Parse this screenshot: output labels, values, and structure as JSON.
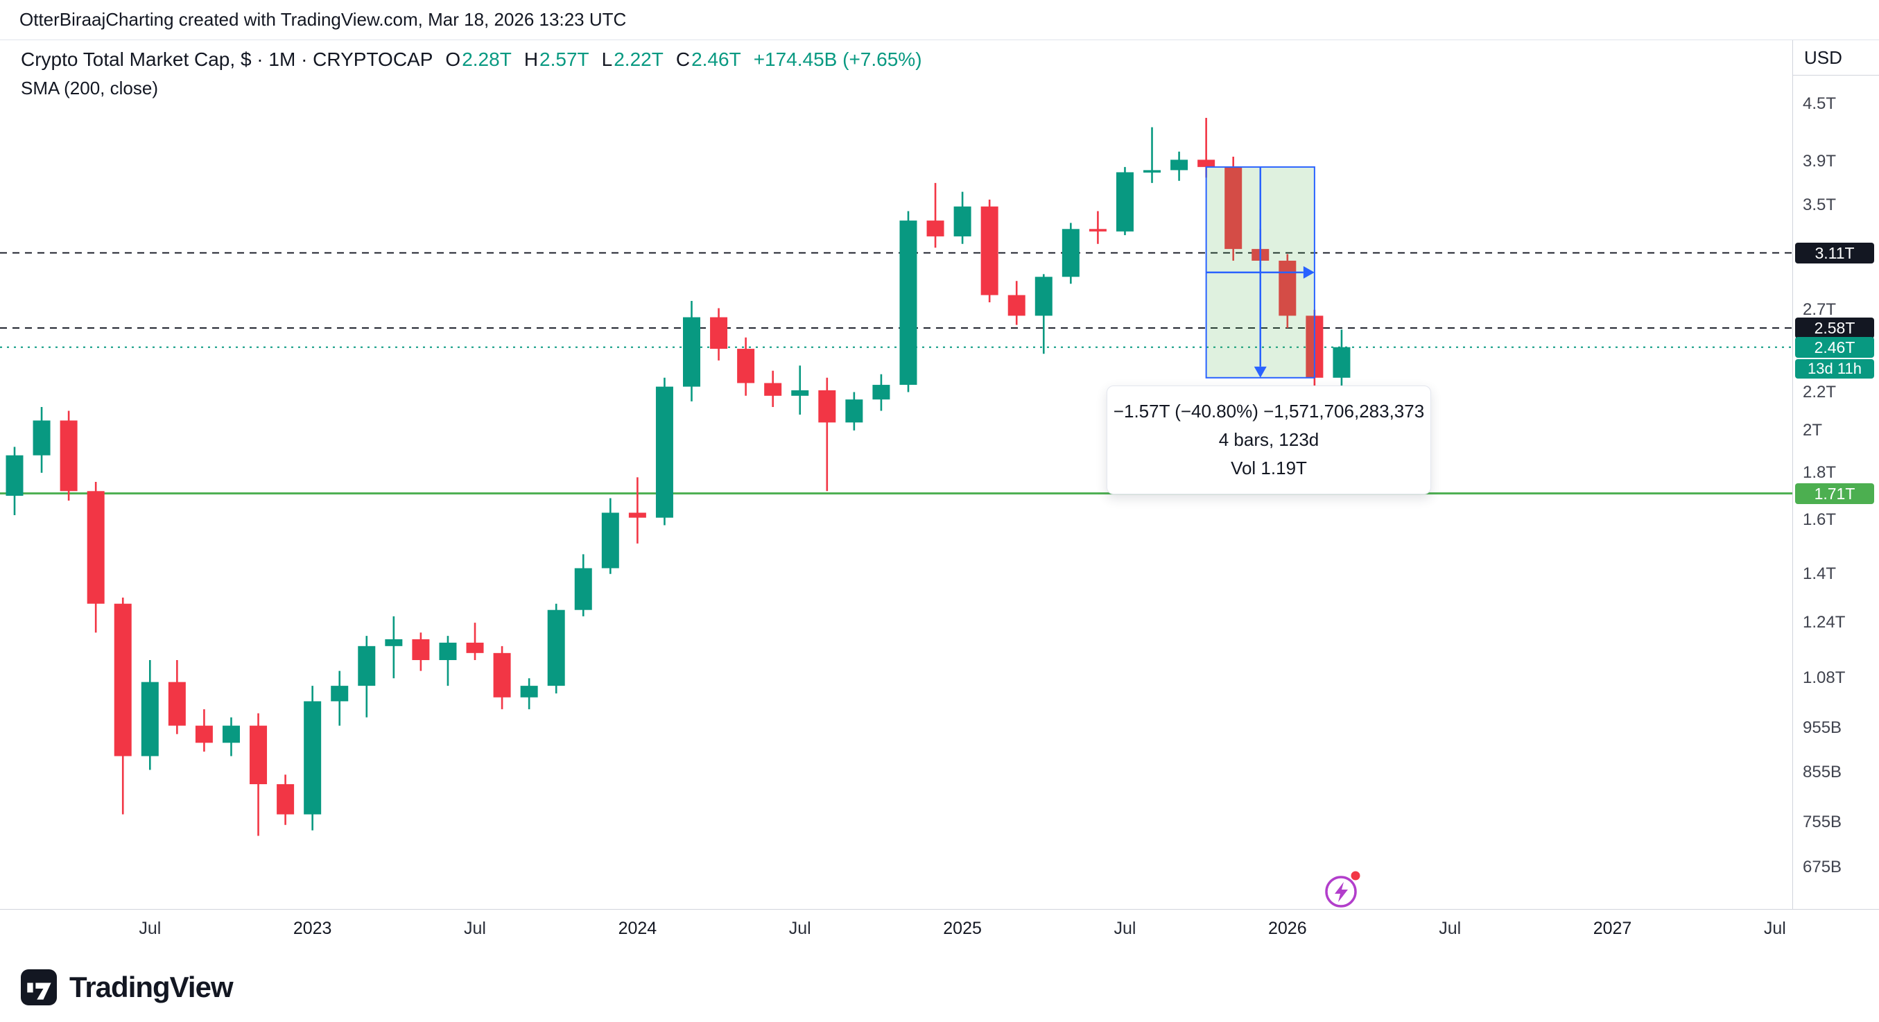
{
  "header": {
    "credit": "OtterBiraajCharting created with TradingView.com, Mar 18, 2026 13:23 UTC"
  },
  "legend": {
    "title": "Crypto Total Market Cap, $ · 1M · CRYPTOCAP",
    "ohlc": {
      "o_label": "O",
      "o": "2.28T",
      "h_label": "H",
      "h": "2.57T",
      "l_label": "L",
      "l": "2.22T",
      "c_label": "C",
      "c": "2.46T",
      "change": "+174.45B (+7.65%)"
    },
    "indicator": "SMA (200, close)"
  },
  "axis": {
    "currency": "USD",
    "price_ticks": [
      {
        "label": "4.5T",
        "value": 4.5
      },
      {
        "label": "3.9T",
        "value": 3.9
      },
      {
        "label": "3.5T",
        "value": 3.5
      },
      {
        "label": "2.7T",
        "value": 2.7
      },
      {
        "label": "2.2T",
        "value": 2.2
      },
      {
        "label": "2T",
        "value": 2.0
      },
      {
        "label": "1.8T",
        "value": 1.8
      },
      {
        "label": "1.6T",
        "value": 1.6
      },
      {
        "label": "1.4T",
        "value": 1.4
      },
      {
        "label": "1.24T",
        "value": 1.24
      },
      {
        "label": "1.08T",
        "value": 1.08
      },
      {
        "label": "955B",
        "value": 0.955
      },
      {
        "label": "855B",
        "value": 0.855
      },
      {
        "label": "755B",
        "value": 0.755
      },
      {
        "label": "675B",
        "value": 0.675
      }
    ],
    "badges": [
      {
        "label": "3.11T",
        "value": 3.11,
        "type": "level-dark"
      },
      {
        "label": "2.58T",
        "value": 2.58,
        "type": "level-dark"
      },
      {
        "label": "2.46T",
        "value": 2.46,
        "type": "price-up",
        "countdown": "13d 11h"
      },
      {
        "label": "1.71T",
        "value": 1.71,
        "type": "sma"
      }
    ],
    "time_ticks": [
      {
        "label": "Jul",
        "index": 5,
        "major": false
      },
      {
        "label": "2023",
        "index": 11,
        "major": true
      },
      {
        "label": "Jul",
        "index": 17,
        "major": false
      },
      {
        "label": "2024",
        "index": 23,
        "major": true
      },
      {
        "label": "Jul",
        "index": 29,
        "major": false
      },
      {
        "label": "2025",
        "index": 35,
        "major": true
      },
      {
        "label": "Jul",
        "index": 41,
        "major": false
      },
      {
        "label": "2026",
        "index": 47,
        "major": true
      },
      {
        "label": "Jul",
        "index": 53,
        "major": false
      },
      {
        "label": "2027",
        "index": 59,
        "major": true
      },
      {
        "label": "Jul",
        "index": 65,
        "major": false
      }
    ]
  },
  "tooltip": {
    "line1": "−1.57T (−40.80%) −1,571,706,283,373",
    "line2": "4 bars, 123d",
    "line3": "Vol 1.19T"
  },
  "footer": {
    "brand": "TradingView"
  },
  "colors": {
    "up": "#089981",
    "down": "#f23645",
    "sma_green": "#4caf50",
    "accent_blue": "#2962ff",
    "badge_dark": "#131722"
  },
  "chart_data": {
    "type": "candlestick",
    "title": "Crypto Total Market Cap, $ · 1M · CRYPTOCAP",
    "interval": "1M",
    "unit": "trillion USD",
    "scale": "log",
    "grid": "off",
    "visible_price_range": [
      0.675,
      4.5
    ],
    "visible_time_range": [
      "2022-02",
      "2027-07"
    ],
    "candles": [
      {
        "t": "2022-02",
        "o": 1.7,
        "h": 1.92,
        "l": 1.62,
        "c": 1.88
      },
      {
        "t": "2022-03",
        "o": 1.88,
        "h": 2.12,
        "l": 1.8,
        "c": 2.05
      },
      {
        "t": "2022-04",
        "o": 2.05,
        "h": 2.1,
        "l": 1.68,
        "c": 1.72
      },
      {
        "t": "2022-05",
        "o": 1.72,
        "h": 1.76,
        "l": 1.21,
        "c": 1.3
      },
      {
        "t": "2022-06",
        "o": 1.3,
        "h": 1.32,
        "l": 0.77,
        "c": 0.89
      },
      {
        "t": "2022-07",
        "o": 0.89,
        "h": 1.13,
        "l": 0.86,
        "c": 1.07
      },
      {
        "t": "2022-08",
        "o": 1.07,
        "h": 1.13,
        "l": 0.94,
        "c": 0.96
      },
      {
        "t": "2022-09",
        "o": 0.96,
        "h": 1.0,
        "l": 0.9,
        "c": 0.92
      },
      {
        "t": "2022-10",
        "o": 0.92,
        "h": 0.98,
        "l": 0.89,
        "c": 0.96
      },
      {
        "t": "2022-11",
        "o": 0.96,
        "h": 0.99,
        "l": 0.73,
        "c": 0.83
      },
      {
        "t": "2022-12",
        "o": 0.83,
        "h": 0.85,
        "l": 0.75,
        "c": 0.77
      },
      {
        "t": "2023-01",
        "o": 0.77,
        "h": 1.06,
        "l": 0.74,
        "c": 1.02
      },
      {
        "t": "2023-02",
        "o": 1.02,
        "h": 1.1,
        "l": 0.96,
        "c": 1.06
      },
      {
        "t": "2023-03",
        "o": 1.06,
        "h": 1.2,
        "l": 0.98,
        "c": 1.17
      },
      {
        "t": "2023-04",
        "o": 1.17,
        "h": 1.26,
        "l": 1.08,
        "c": 1.19
      },
      {
        "t": "2023-05",
        "o": 1.19,
        "h": 1.21,
        "l": 1.1,
        "c": 1.13
      },
      {
        "t": "2023-06",
        "o": 1.13,
        "h": 1.2,
        "l": 1.06,
        "c": 1.18
      },
      {
        "t": "2023-07",
        "o": 1.18,
        "h": 1.24,
        "l": 1.13,
        "c": 1.15
      },
      {
        "t": "2023-08",
        "o": 1.15,
        "h": 1.17,
        "l": 1.0,
        "c": 1.03
      },
      {
        "t": "2023-09",
        "o": 1.03,
        "h": 1.08,
        "l": 1.0,
        "c": 1.06
      },
      {
        "t": "2023-10",
        "o": 1.06,
        "h": 1.3,
        "l": 1.04,
        "c": 1.28
      },
      {
        "t": "2023-11",
        "o": 1.28,
        "h": 1.47,
        "l": 1.26,
        "c": 1.42
      },
      {
        "t": "2023-12",
        "o": 1.42,
        "h": 1.69,
        "l": 1.4,
        "c": 1.63
      },
      {
        "t": "2024-01",
        "o": 1.63,
        "h": 1.78,
        "l": 1.51,
        "c": 1.61
      },
      {
        "t": "2024-02",
        "o": 1.61,
        "h": 2.28,
        "l": 1.58,
        "c": 2.23
      },
      {
        "t": "2024-03",
        "o": 2.23,
        "h": 2.76,
        "l": 2.15,
        "c": 2.65
      },
      {
        "t": "2024-04",
        "o": 2.65,
        "h": 2.71,
        "l": 2.38,
        "c": 2.45
      },
      {
        "t": "2024-05",
        "o": 2.45,
        "h": 2.52,
        "l": 2.18,
        "c": 2.25
      },
      {
        "t": "2024-06",
        "o": 2.25,
        "h": 2.32,
        "l": 2.12,
        "c": 2.18
      },
      {
        "t": "2024-07",
        "o": 2.18,
        "h": 2.35,
        "l": 2.08,
        "c": 2.21
      },
      {
        "t": "2024-08",
        "o": 2.21,
        "h": 2.28,
        "l": 1.72,
        "c": 2.04
      },
      {
        "t": "2024-09",
        "o": 2.04,
        "h": 2.2,
        "l": 2.0,
        "c": 2.16
      },
      {
        "t": "2024-10",
        "o": 2.16,
        "h": 2.3,
        "l": 2.1,
        "c": 2.24
      },
      {
        "t": "2024-11",
        "o": 2.24,
        "h": 3.45,
        "l": 2.2,
        "c": 3.37
      },
      {
        "t": "2024-12",
        "o": 3.37,
        "h": 3.7,
        "l": 3.15,
        "c": 3.24
      },
      {
        "t": "2025-01",
        "o": 3.24,
        "h": 3.62,
        "l": 3.18,
        "c": 3.49
      },
      {
        "t": "2025-02",
        "o": 3.49,
        "h": 3.55,
        "l": 2.75,
        "c": 2.8
      },
      {
        "t": "2025-03",
        "o": 2.8,
        "h": 2.9,
        "l": 2.6,
        "c": 2.66
      },
      {
        "t": "2025-04",
        "o": 2.66,
        "h": 2.95,
        "l": 2.42,
        "c": 2.93
      },
      {
        "t": "2025-05",
        "o": 2.93,
        "h": 3.35,
        "l": 2.88,
        "c": 3.3
      },
      {
        "t": "2025-06",
        "o": 3.3,
        "h": 3.45,
        "l": 3.18,
        "c": 3.28
      },
      {
        "t": "2025-07",
        "o": 3.28,
        "h": 3.85,
        "l": 3.25,
        "c": 3.8
      },
      {
        "t": "2025-08",
        "o": 3.8,
        "h": 4.25,
        "l": 3.7,
        "c": 3.82
      },
      {
        "t": "2025-09",
        "o": 3.82,
        "h": 4.0,
        "l": 3.72,
        "c": 3.92
      },
      {
        "t": "2025-10",
        "o": 3.92,
        "h": 4.35,
        "l": 3.75,
        "c": 3.85
      },
      {
        "t": "2025-11",
        "o": 3.85,
        "h": 3.95,
        "l": 3.05,
        "c": 3.14
      },
      {
        "t": "2025-12",
        "o": 3.14,
        "h": 3.3,
        "l": 3.0,
        "c": 3.05
      },
      {
        "t": "2026-01",
        "o": 3.05,
        "h": 3.1,
        "l": 2.58,
        "c": 2.66
      },
      {
        "t": "2026-02",
        "o": 2.66,
        "h": 2.7,
        "l": 2.22,
        "c": 2.28
      },
      {
        "t": "2026-03",
        "o": 2.28,
        "h": 2.57,
        "l": 2.22,
        "c": 2.46
      }
    ],
    "overlays": {
      "sma_200_close": 1.71,
      "dashed_levels": [
        3.11,
        2.58
      ],
      "current_price": 2.46,
      "bar_close_countdown": "13d 11h"
    },
    "measurement": {
      "from": "2025-10",
      "to": "2026-02",
      "from_index": 44,
      "to_index": 48,
      "start_price": 3.85,
      "end_price": 2.28,
      "change": "−1.57T (−40.80%)",
      "change_absolute": "−1,571,706,283,373",
      "bars": "4 bars, 123d",
      "volume": "Vol 1.19T"
    }
  }
}
